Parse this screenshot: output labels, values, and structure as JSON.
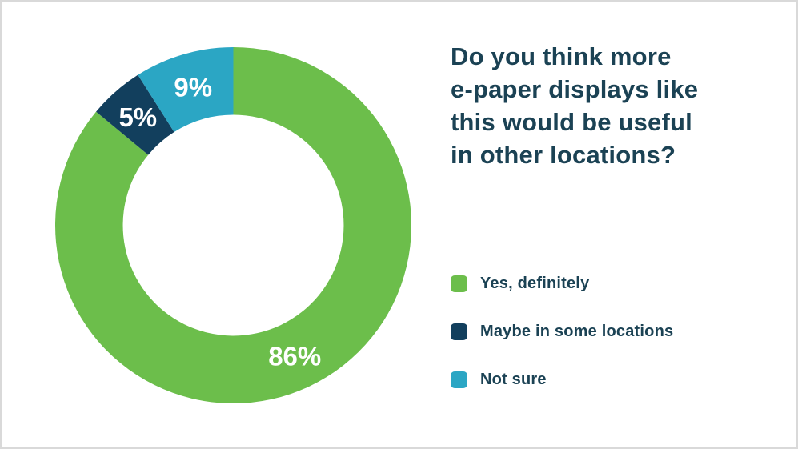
{
  "page": {
    "background_color": "#ffffff",
    "border_color": "#d9d9d9",
    "text_color": "#1b4254"
  },
  "question": {
    "title": "Do you think more e-paper displays like this would be useful in other locations?",
    "title_display": "Do you think more\ne-paper displays like\nthis would be useful\nin other locations?"
  },
  "chart_data": {
    "type": "pie",
    "subtype": "donut",
    "title": "Do you think more e-paper displays like this would be useful in other locations?",
    "unit": "%",
    "categories": [
      "Yes, definitely",
      "Maybe in some locations",
      "Not sure"
    ],
    "values": [
      86,
      5,
      9
    ],
    "colors": [
      "#6cbe4b",
      "#123f5d",
      "#2ba6c4"
    ],
    "slice_labels": [
      "86%",
      "5%",
      "9%"
    ],
    "slice_label_color": "#ffffff",
    "start_angle_deg": 0,
    "direction": "clockwise",
    "inner_radius_ratio": 0.62,
    "legend_position": "right",
    "legend": [
      {
        "label": "Yes, definitely",
        "color": "#6cbe4b"
      },
      {
        "label": "Maybe in some locations",
        "color": "#123f5d"
      },
      {
        "label": "Not sure",
        "color": "#2ba6c4"
      }
    ]
  }
}
